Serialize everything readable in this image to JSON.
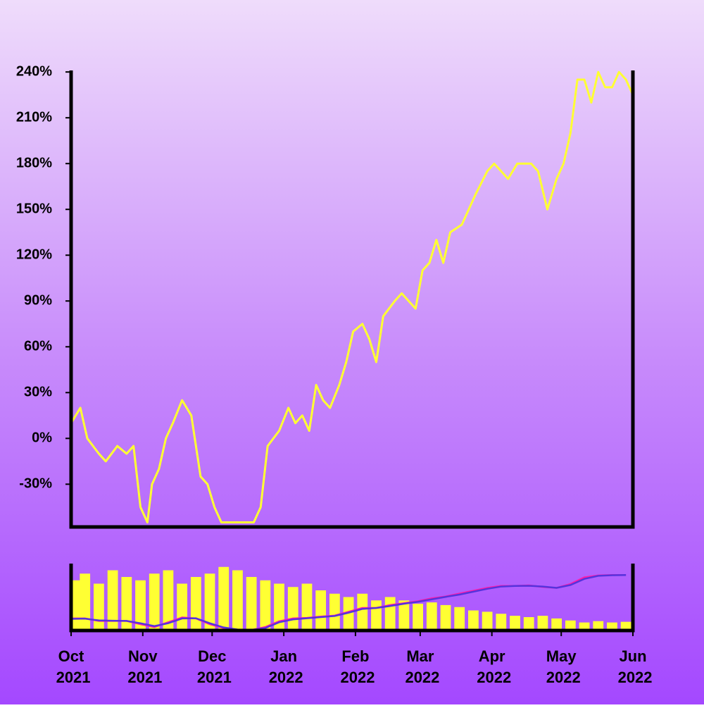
{
  "chart_data": [
    {
      "type": "line",
      "x": [
        0,
        4,
        7,
        12,
        15,
        20,
        24,
        27,
        30,
        33,
        35,
        38,
        41,
        44,
        48,
        50,
        52,
        56,
        59,
        62,
        65,
        72,
        79,
        82,
        85,
        90,
        94,
        97,
        100,
        103,
        106,
        109,
        112,
        116,
        119,
        122,
        126,
        129,
        132,
        135,
        140,
        143,
        146,
        149,
        152,
        155,
        158,
        161,
        164,
        169,
        172,
        175,
        180,
        183,
        186,
        189,
        193,
        196,
        199,
        202,
        206,
        210,
        213,
        216,
        219,
        222,
        225,
        228,
        231,
        234,
        237,
        240,
        243
      ],
      "series": [
        {
          "color": "#ffff33",
          "values": [
            10,
            20,
            0,
            -10,
            -15,
            -5,
            -10,
            -5,
            -45,
            -55,
            -30,
            -20,
            0,
            10,
            25,
            20,
            15,
            -25,
            -30,
            -45,
            -55,
            -55,
            -55,
            -45,
            -5,
            5,
            20,
            10,
            15,
            5,
            35,
            25,
            20,
            35,
            50,
            70,
            75,
            65,
            50,
            80,
            90,
            95,
            90,
            85,
            110,
            115,
            130,
            115,
            135,
            140,
            150,
            160,
            175,
            180,
            175,
            170,
            180,
            180,
            180,
            175,
            150,
            170,
            180,
            200,
            235,
            235,
            220,
            240,
            230,
            230,
            240,
            235,
            225
          ]
        }
      ],
      "xlim": [
        0,
        243
      ],
      "xticks": [
        {
          "value": 0,
          "label": "Oct 2021"
        },
        {
          "value": 31,
          "label": "Nov 2021"
        },
        {
          "value": 61,
          "label": "Dec 2021"
        },
        {
          "value": 92,
          "label": "Jan 2022"
        },
        {
          "value": 123,
          "label": "Feb 2022"
        },
        {
          "value": 151,
          "label": "Mar 2022"
        },
        {
          "value": 182,
          "label": "Apr 2022"
        },
        {
          "value": 212,
          "label": "May 2022"
        },
        {
          "value": 243,
          "label": "Jun 2022"
        }
      ],
      "ylim": [
        -58,
        241
      ],
      "yticks": [
        {
          "value": -30,
          "label": "-30%"
        },
        {
          "value": 0,
          "label": "0%"
        },
        {
          "value": 30,
          "label": "30%"
        },
        {
          "value": 60,
          "label": "60%"
        },
        {
          "value": 90,
          "label": "90%"
        },
        {
          "value": 120,
          "label": "120%"
        },
        {
          "value": 150,
          "label": "150%"
        },
        {
          "value": 180,
          "label": "180%"
        },
        {
          "value": 210,
          "label": "210%"
        },
        {
          "value": 240,
          "label": "240%"
        }
      ]
    },
    {
      "type": "overview",
      "x": [
        0,
        6,
        12,
        18,
        24,
        30,
        36,
        42,
        48,
        54,
        60,
        66,
        72,
        78,
        84,
        90,
        96,
        102,
        108,
        114,
        120,
        126,
        132,
        138,
        144,
        150,
        156,
        162,
        168,
        174,
        180,
        186,
        192,
        198,
        204,
        210,
        216,
        222,
        228,
        234,
        240
      ],
      "series": [
        {
          "color": "#ffff33",
          "axis": "y2",
          "values": [
            75,
            85,
            70,
            90,
            80,
            75,
            85,
            90,
            70,
            80,
            85,
            95,
            90,
            80,
            75,
            70,
            65,
            70,
            60,
            55,
            50,
            55,
            45,
            50,
            45,
            40,
            42,
            38,
            35,
            30,
            28,
            25,
            22,
            20,
            22,
            18,
            15,
            12,
            14,
            12,
            13
          ]
        },
        {
          "color": "#ff1aa8",
          "values": [
            5,
            5,
            -8,
            -8,
            -8,
            -25,
            -40,
            -15,
            10,
            5,
            -25,
            -45,
            -55,
            -55,
            -40,
            -10,
            5,
            8,
            15,
            20,
            40,
            60,
            60,
            75,
            85,
            95,
            110,
            120,
            135,
            150,
            165,
            175,
            175,
            178,
            170,
            165,
            185,
            220,
            230,
            232,
            232
          ]
        },
        {
          "color": "#5533dd",
          "values": [
            3,
            4,
            -5,
            -7,
            -8,
            -20,
            -35,
            -20,
            5,
            6,
            -20,
            -42,
            -53,
            -55,
            -45,
            -15,
            0,
            6,
            12,
            18,
            35,
            55,
            60,
            70,
            82,
            92,
            105,
            118,
            130,
            145,
            160,
            172,
            175,
            176,
            172,
            165,
            180,
            212,
            228,
            231,
            232
          ]
        }
      ],
      "xlim": [
        0,
        243
      ],
      "ylim": [
        -58,
        292
      ],
      "y2lim": [
        0,
        100
      ]
    }
  ]
}
